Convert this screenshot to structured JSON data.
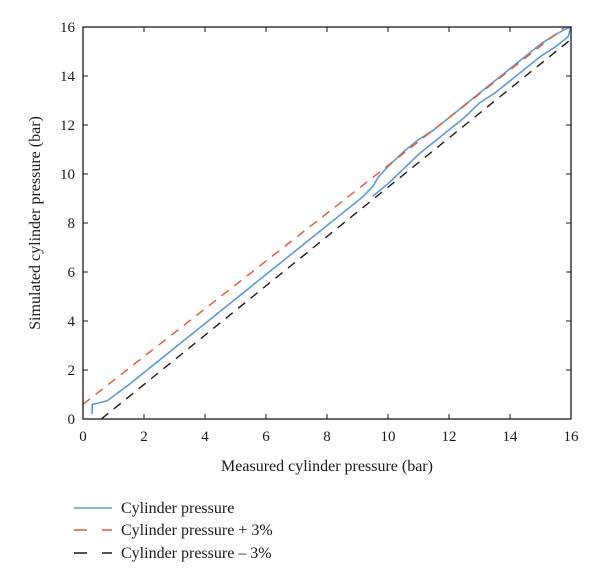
{
  "chart_data": {
    "type": "line",
    "title": "",
    "xlabel": "Measured cylinder pressure (bar)",
    "ylabel": "Simulated cylinder pressure (bar)",
    "xlim": [
      0,
      16
    ],
    "ylim": [
      0,
      16
    ],
    "x_ticks": [
      0,
      2,
      4,
      6,
      8,
      10,
      12,
      14,
      16
    ],
    "y_ticks": [
      0,
      2,
      4,
      6,
      8,
      10,
      12,
      14,
      16
    ],
    "grid": false,
    "legend_position": "bottom-left",
    "series": [
      {
        "name": "Cylinder pressure",
        "color": "#5b9bd5",
        "style": "solid",
        "x": [
          0.3,
          0.3,
          0.5,
          0.8,
          1.5,
          2.5,
          3.5,
          4.5,
          5.5,
          6.5,
          7.5,
          8.5,
          9.2,
          9.5,
          9.7,
          10.0,
          10.5,
          11.0,
          11.5,
          12.0,
          12.5,
          13.0,
          13.5,
          14.0,
          14.5,
          15.0,
          15.5,
          15.8,
          16.0,
          15.9,
          15.5,
          15.0,
          14.5,
          14.0,
          13.5,
          13.0,
          12.5,
          12.0,
          11.5,
          11.0,
          10.5,
          10.0,
          9.5
        ],
        "y": [
          0.2,
          0.6,
          0.65,
          0.75,
          1.4,
          2.4,
          3.4,
          4.4,
          5.4,
          6.4,
          7.4,
          8.4,
          9.1,
          9.5,
          9.9,
          10.3,
          10.9,
          11.4,
          11.8,
          12.3,
          12.8,
          13.3,
          13.8,
          14.3,
          14.8,
          15.3,
          15.7,
          15.9,
          16.0,
          15.6,
          15.2,
          14.8,
          14.3,
          13.8,
          13.3,
          12.9,
          12.3,
          11.8,
          11.3,
          10.8,
          10.2,
          9.6,
          9.1
        ]
      },
      {
        "name": "Cylinder pressure + 3%",
        "color": "#e8552e",
        "style": "dashed",
        "x": [
          0,
          15.8
        ],
        "y": [
          0.6,
          16.0
        ]
      },
      {
        "name": "Cylinder pressure – 3%",
        "color": "#1a1a1a",
        "style": "dashed",
        "x": [
          0.6,
          16.0
        ],
        "y": [
          0.0,
          15.5
        ]
      }
    ]
  }
}
